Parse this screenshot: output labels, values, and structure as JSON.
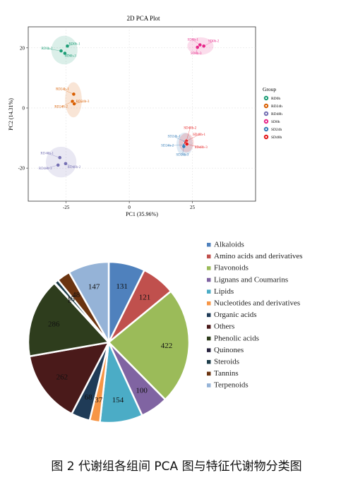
{
  "chart_data": [
    {
      "type": "scatter",
      "title": "2D PCA Plot",
      "xlabel": "PC1 (35.96%)",
      "ylabel": "PC2 (14.31%)",
      "xlim": [
        -40,
        50
      ],
      "ylim": [
        -31,
        27
      ],
      "xticks": [
        "-25",
        "0",
        "25"
      ],
      "xtick_values": [
        -25,
        0,
        25
      ],
      "yticks": [
        "20",
        "0",
        "-20"
      ],
      "ytick_values": [
        20,
        0,
        -20
      ],
      "legend_title": "Group",
      "legend_position": "right",
      "series": [
        {
          "name": "RD0h",
          "color": "#1e9e77",
          "labels": [
            "RD0h-1",
            "RD0h-2",
            "RD0h-3"
          ],
          "points": [
            [
              -24.5,
              20.6
            ],
            [
              -27.0,
              19.0
            ],
            [
              -25.5,
              18.2
            ]
          ],
          "label_offsets": [
            [
              10,
              -2
            ],
            [
              -20,
              -2
            ],
            [
              8,
              5
            ]
          ]
        },
        {
          "name": "RD24h",
          "color": "#d95f02",
          "labels": [
            "RD24h-1",
            "RD24h-2",
            "RD24h-3"
          ],
          "points": [
            [
              -22.0,
              4.6
            ],
            [
              -22.5,
              2.2
            ],
            [
              -21.8,
              1.4
            ]
          ],
          "label_offsets": [
            [
              -16,
              -6
            ],
            [
              -16,
              9
            ],
            [
              12,
              -2
            ]
          ]
        },
        {
          "name": "RD48h",
          "color": "#7570b3",
          "labels": [
            "RD48h-1",
            "RD48h-2",
            "RD48h-3"
          ],
          "points": [
            [
              -27.5,
              -16.5
            ],
            [
              -25.2,
              -18.5
            ],
            [
              -28.2,
              -19.0
            ]
          ],
          "label_offsets": [
            [
              -18,
              -5
            ],
            [
              12,
              6
            ],
            [
              -18,
              6
            ]
          ]
        },
        {
          "name": "SD0h",
          "color": "#e7298a",
          "labels": [
            "SD0h-1",
            "SD0h-2",
            "SD0h-3"
          ],
          "points": [
            [
              28.0,
              21.0
            ],
            [
              29.5,
              20.6
            ],
            [
              27.0,
              20.2
            ]
          ],
          "label_offsets": [
            [
              -10,
              -6
            ],
            [
              14,
              -6
            ],
            [
              -2,
              10
            ]
          ]
        },
        {
          "name": "SD24h",
          "color": "#377eb8",
          "labels": [
            "SD24h-1",
            "SD24h-2",
            "SD24h-3"
          ],
          "points": [
            [
              22.2,
              -11.2
            ],
            [
              21.8,
              -12.3
            ],
            [
              21.6,
              -12.8
            ]
          ],
          "label_offsets": [
            [
              -16,
              -6
            ],
            [
              -24,
              2
            ],
            [
              -2,
              13
            ]
          ]
        },
        {
          "name": "SD48h",
          "color": "#e41a1c",
          "labels": [
            "SD48h-1",
            "SD48h-2",
            "SD48h-3"
          ],
          "points": [
            [
              22.6,
              -11.0
            ],
            [
              22.4,
              -11.6
            ],
            [
              22.8,
              -12.0
            ]
          ],
          "label_offsets": [
            [
              18,
              -8
            ],
            [
              6,
              -20
            ],
            [
              20,
              6
            ]
          ]
        }
      ]
    },
    {
      "type": "pie",
      "legend_position": "right",
      "slices": [
        {
          "label": "Alkaloids",
          "value": 131,
          "color": "#4f81bd"
        },
        {
          "label": "Amino acids and derivatives",
          "value": 121,
          "color": "#c0504d"
        },
        {
          "label": "Flavonoids",
          "value": 422,
          "color": "#9bbb59"
        },
        {
          "label": "Lignans and Coumarins",
          "value": 100,
          "color": "#8064a2"
        },
        {
          "label": "Lipids",
          "value": 154,
          "color": "#4bacc6"
        },
        {
          "label": "Nucleotides and derivatives",
          "value": 37,
          "color": "#f79646"
        },
        {
          "label": "Organic acids",
          "value": 68,
          "color": "#1f3b57"
        },
        {
          "label": "Others",
          "value": 262,
          "color": "#4a1a1a"
        },
        {
          "label": "Phenolic acids",
          "value": 286,
          "color": "#2e3d1d"
        },
        {
          "label": "Quinones",
          "value": 2,
          "color": "#2a2540"
        },
        {
          "label": "Steroids",
          "value": 15,
          "color": "#1d3d4a"
        },
        {
          "label": "Tannins",
          "value": 48,
          "color": "#6b3410"
        },
        {
          "label": "Terpenoids",
          "value": 147,
          "color": "#95b3d7"
        }
      ]
    }
  ],
  "caption": "图 2  代谢组各组间 PCA 图与特征代谢物分类图"
}
